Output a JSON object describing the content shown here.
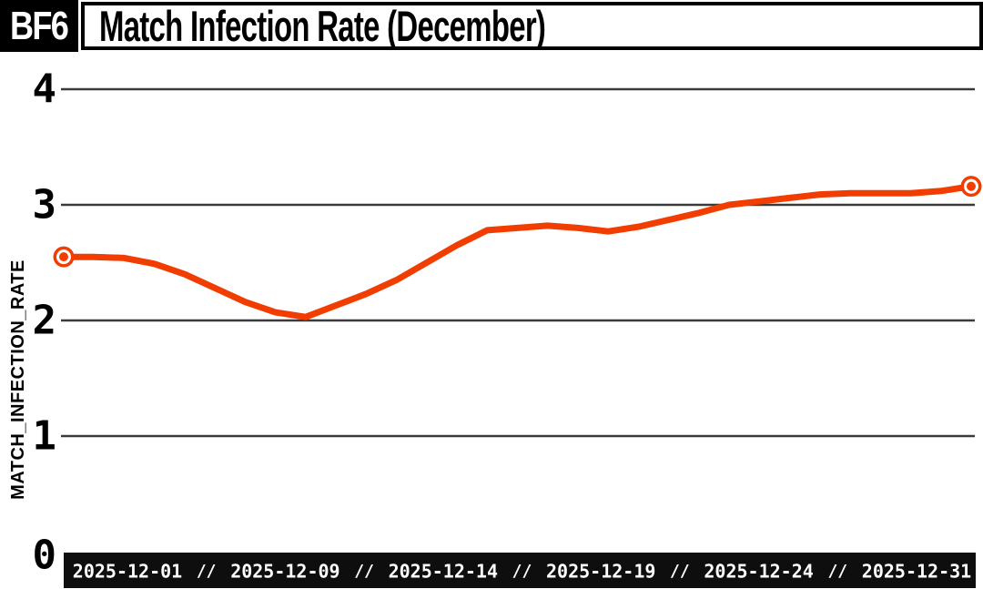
{
  "header": {
    "badge": "BF6",
    "title": "Match Infection Rate (December)"
  },
  "colors": {
    "line": "#F23D00",
    "grid": "#3A3A3A",
    "bar_bg": "#0E0E0E",
    "bar_text": "#FFFFFF",
    "badge_bg": "#000000",
    "badge_text": "#FFFFFF",
    "header_border": "#000000",
    "marker_ring": "#FFFFFF",
    "text": "#000000"
  },
  "y_axis": {
    "title": "MATCH_INFECTION_RATE",
    "tick_labels": [
      "0",
      "1",
      "2",
      "3",
      "4"
    ]
  },
  "x_axis_bar": {
    "separator": "//",
    "labels": [
      "2025-12-01",
      "2025-12-09",
      "2025-12-14",
      "2025-12-19",
      "2025-12-24",
      "2025-12-31"
    ]
  },
  "chart_data": {
    "type": "line",
    "title": "Match Infection Rate (December)",
    "xlabel": "",
    "ylabel": "MATCH_INFECTION_RATE",
    "ylim": [
      0,
      4
    ],
    "y_ticks": [
      0,
      1,
      2,
      3,
      4
    ],
    "grid": "horizontal",
    "legend_position": "none",
    "x_tick_labels": [
      "2025-12-01",
      "2025-12-09",
      "2025-12-14",
      "2025-12-19",
      "2025-12-24",
      "2025-12-31"
    ],
    "x": [
      "2025-12-01",
      "2025-12-02",
      "2025-12-03",
      "2025-12-04",
      "2025-12-05",
      "2025-12-06",
      "2025-12-07",
      "2025-12-08",
      "2025-12-09",
      "2025-12-10",
      "2025-12-11",
      "2025-12-12",
      "2025-12-13",
      "2025-12-14",
      "2025-12-15",
      "2025-12-16",
      "2025-12-17",
      "2025-12-18",
      "2025-12-19",
      "2025-12-20",
      "2025-12-21",
      "2025-12-22",
      "2025-12-23",
      "2025-12-24",
      "2025-12-25",
      "2025-12-26",
      "2025-12-27",
      "2025-12-28",
      "2025-12-29",
      "2025-12-30",
      "2025-12-31"
    ],
    "series": [
      {
        "name": "MATCH_INFECTION_RATE",
        "color": "#F23D00",
        "values": [
          2.55,
          2.55,
          2.54,
          2.49,
          2.4,
          2.28,
          2.16,
          2.07,
          2.03,
          2.13,
          2.23,
          2.35,
          2.5,
          2.65,
          2.78,
          2.8,
          2.82,
          2.8,
          2.77,
          2.81,
          2.87,
          2.93,
          3.0,
          3.03,
          3.06,
          3.09,
          3.1,
          3.1,
          3.1,
          3.12,
          3.16
        ]
      }
    ],
    "markers": "endpoints-only"
  }
}
